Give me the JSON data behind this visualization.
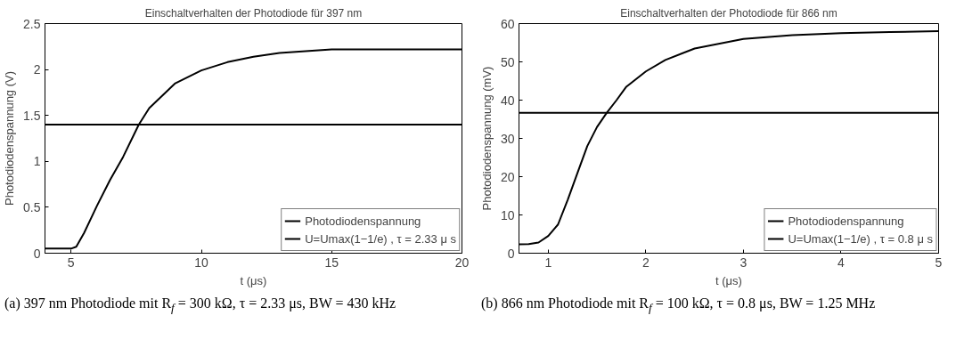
{
  "chart_data": [
    {
      "type": "line",
      "title": "Einschaltverhalten der Photodiode für 397 nm",
      "xlabel": "t (μs)",
      "ylabel": "Photodiodenspannung (V)",
      "xlim": [
        4,
        20
      ],
      "ylim": [
        0,
        2.5
      ],
      "xticks": [
        5,
        10,
        15,
        20
      ],
      "yticks": [
        0,
        0.5,
        1,
        1.5,
        2,
        2.5
      ],
      "grid": false,
      "legend": "bottom right",
      "line_style": "solid",
      "marker": "none",
      "series": [
        {
          "name": "Photodiodenspannung",
          "color": "#000000",
          "x": [
            4,
            4.5,
            5,
            5.2,
            5.5,
            6,
            6.5,
            7,
            7.6,
            8,
            9,
            10,
            11,
            12,
            13,
            14,
            15,
            17,
            20
          ],
          "values": [
            0.05,
            0.05,
            0.05,
            0.07,
            0.22,
            0.52,
            0.8,
            1.05,
            1.4,
            1.58,
            1.85,
            1.99,
            2.08,
            2.14,
            2.18,
            2.2,
            2.22,
            2.22,
            2.22
          ]
        },
        {
          "name": "U=Umax(1−1/e) , τ = 2.33 μ s",
          "color": "#000000",
          "x": [
            4,
            20
          ],
          "values": [
            1.4,
            1.4
          ]
        }
      ],
      "annotations": [
        "(a) 397 nm Photodiode mit R$_{f}$ = 300 kΩ, τ = 2.33 μs, BW = 430 kHz"
      ]
    },
    {
      "type": "line",
      "title": "Einschaltverhalten der Photodiode für 866 nm",
      "xlabel": "t (μs)",
      "ylabel": "Photodiodenspannung (mV)",
      "xlim": [
        0.7,
        5
      ],
      "ylim": [
        0,
        60
      ],
      "xticks": [
        1,
        2,
        3,
        4,
        5
      ],
      "yticks": [
        0,
        10,
        20,
        30,
        40,
        50,
        60
      ],
      "grid": false,
      "legend": "bottom right",
      "line_style": "solid",
      "marker": "none",
      "series": [
        {
          "name": "Photodiodenspannung",
          "color": "#000000",
          "x": [
            0.7,
            0.8,
            0.9,
            1.0,
            1.1,
            1.2,
            1.3,
            1.4,
            1.5,
            1.6,
            1.7,
            1.8,
            2.0,
            2.2,
            2.5,
            3.0,
            3.5,
            4.0,
            4.5,
            5.0
          ],
          "values": [
            2.3,
            2.4,
            2.8,
            4.5,
            7.5,
            14,
            21,
            28,
            33,
            36.7,
            40,
            43.5,
            47.5,
            50.5,
            53.5,
            56,
            57,
            57.5,
            57.8,
            58
          ]
        },
        {
          "name": "U=Umax(1−1/e) , τ = 0.8 μ s",
          "color": "#000000",
          "x": [
            0.7,
            5
          ],
          "values": [
            36.7,
            36.7
          ]
        }
      ],
      "annotations": [
        "(b) 866 nm Photodiode mit R$_{f}$ = 100 kΩ, τ = 0.8 μs, BW = 1.25 MHz"
      ]
    }
  ]
}
